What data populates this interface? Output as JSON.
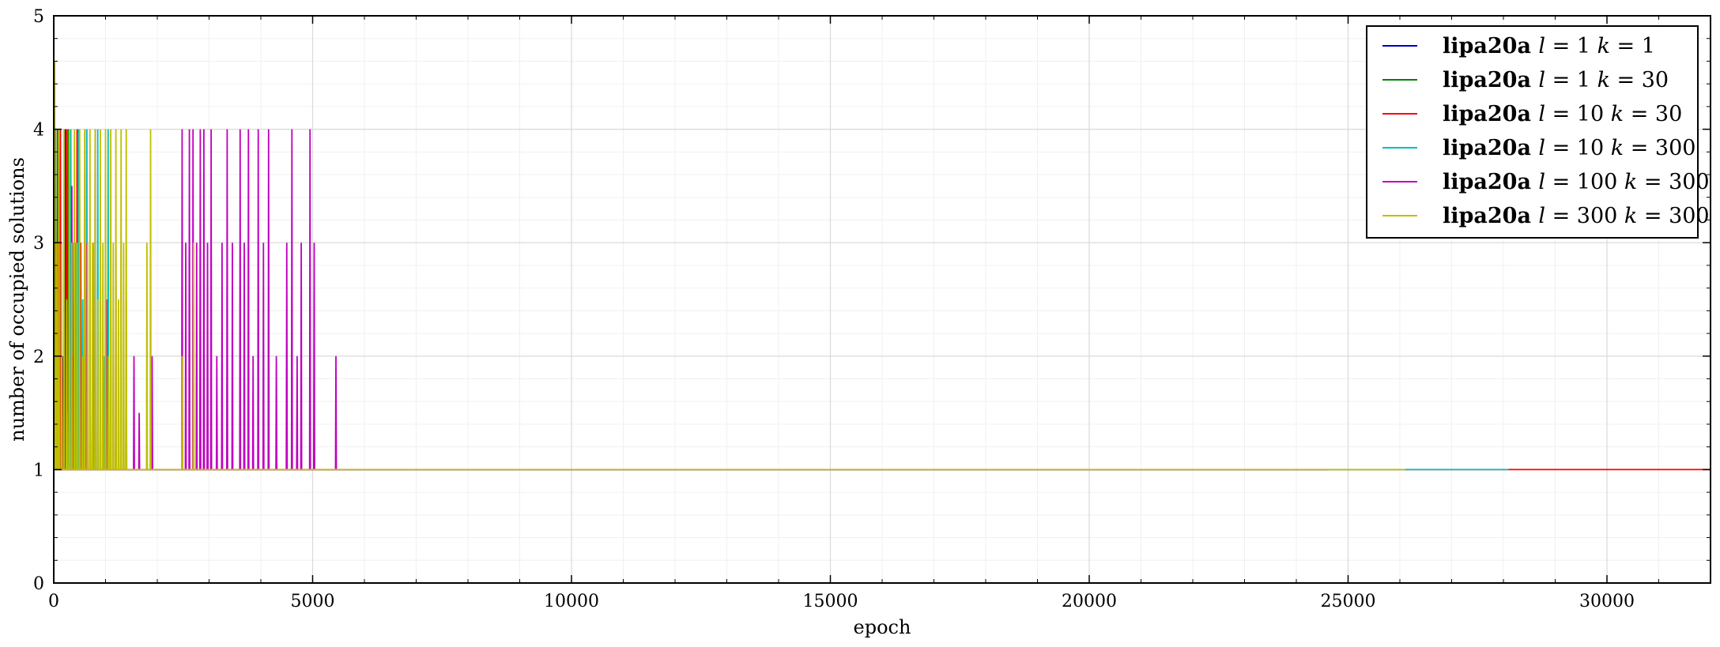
{
  "chart_data": {
    "type": "line",
    "xlabel": "epoch",
    "ylabel": "number of occupied solutions",
    "xlim": [
      0,
      32000
    ],
    "ylim": [
      0,
      5
    ],
    "x_ticks": [
      0,
      5000,
      10000,
      15000,
      20000,
      25000,
      30000
    ],
    "x_tick_labels": [
      "0",
      "5000",
      "10000",
      "15000",
      "20000",
      "25000",
      "30000"
    ],
    "y_ticks": [
      0,
      1,
      2,
      3,
      4,
      5
    ],
    "y_tick_labels": [
      "0",
      "1",
      "2",
      "3",
      "4",
      "5"
    ],
    "grid": true,
    "minor_grid": true,
    "legend_position": "top-right",
    "series": [
      {
        "name": "lipa20a l = 1 k = 1",
        "legend": {
          "text": "lipa20a",
          "l": "1",
          "k": "1"
        },
        "color": "#0000bf",
        "end_epoch": 24600,
        "steady_value": 1,
        "spikes": [
          [
            10,
            4
          ],
          [
            40,
            2.5
          ],
          [
            90,
            3
          ],
          [
            160,
            2
          ],
          [
            220,
            4
          ],
          [
            300,
            1.5
          ],
          [
            360,
            3
          ],
          [
            420,
            2
          ]
        ]
      },
      {
        "name": "lipa20a l = 1 k = 30",
        "legend": {
          "text": "lipa20a",
          "l": "1",
          "k": "30"
        },
        "color": "#008000",
        "end_epoch": 24600,
        "steady_value": 1,
        "spikes": [
          [
            20,
            3
          ],
          [
            70,
            4
          ],
          [
            140,
            2
          ],
          [
            200,
            3
          ],
          [
            280,
            4
          ],
          [
            340,
            1.5
          ],
          [
            400,
            2.5
          ]
        ]
      },
      {
        "name": "lipa20a l = 10 k = 30",
        "legend": {
          "text": "lipa20a",
          "l": "10",
          "k": "30"
        },
        "color": "#ff0000",
        "end_epoch": 32000,
        "steady_value": 1,
        "spikes": [
          [
            30,
            4
          ],
          [
            80,
            3
          ],
          [
            130,
            4
          ],
          [
            190,
            2
          ],
          [
            250,
            4
          ],
          [
            310,
            3.5
          ],
          [
            380,
            2
          ],
          [
            450,
            4
          ],
          [
            520,
            3
          ],
          [
            600,
            4
          ],
          [
            700,
            2
          ]
        ]
      },
      {
        "name": "lipa20a l = 10 k = 300",
        "legend": {
          "text": "lipa20a",
          "l": "10",
          "k": "300"
        },
        "color": "#00bfbf",
        "end_epoch": 28100,
        "steady_value": 1,
        "spikes": [
          [
            150,
            3
          ],
          [
            260,
            1.5
          ],
          [
            330,
            4
          ],
          [
            420,
            3
          ],
          [
            480,
            4
          ],
          [
            560,
            2.5
          ],
          [
            640,
            4
          ],
          [
            760,
            3
          ],
          [
            850,
            4
          ],
          [
            980,
            2
          ],
          [
            1050,
            4
          ]
        ]
      },
      {
        "name": "lipa20a l = 100 k = 300",
        "legend": {
          "text": "lipa20a",
          "l": "100",
          "k": "300"
        },
        "color": "#bf00bf",
        "end_epoch": 24600,
        "steady_value": 1,
        "spikes": [
          [
            150,
            2
          ],
          [
            350,
            3.5
          ],
          [
            520,
            2
          ],
          [
            640,
            3
          ],
          [
            800,
            4
          ],
          [
            1020,
            2.5
          ],
          [
            1100,
            2.5
          ],
          [
            1200,
            3
          ],
          [
            1400,
            2.5
          ],
          [
            1550,
            2
          ],
          [
            1650,
            1.5
          ],
          [
            1900,
            2
          ],
          [
            2480,
            4
          ],
          [
            2550,
            3
          ],
          [
            2620,
            4
          ],
          [
            2690,
            4
          ],
          [
            2760,
            3
          ],
          [
            2830,
            4
          ],
          [
            2900,
            4
          ],
          [
            2970,
            3
          ],
          [
            3040,
            4
          ],
          [
            3150,
            2
          ],
          [
            3250,
            3
          ],
          [
            3350,
            4
          ],
          [
            3450,
            3
          ],
          [
            3600,
            4
          ],
          [
            3680,
            3
          ],
          [
            3760,
            4
          ],
          [
            3850,
            2
          ],
          [
            3950,
            4
          ],
          [
            4050,
            3
          ],
          [
            4150,
            4
          ],
          [
            4300,
            2
          ],
          [
            4500,
            3
          ],
          [
            4600,
            4
          ],
          [
            4700,
            2
          ],
          [
            4780,
            3
          ],
          [
            4950,
            4
          ],
          [
            5030,
            3
          ],
          [
            5450,
            2
          ]
        ]
      },
      {
        "name": "lipa20a l = 300 k = 300",
        "legend": {
          "text": "lipa20a",
          "l": "300",
          "k": "300"
        },
        "color": "#bfbf00",
        "end_epoch": 26100,
        "steady_value": 1,
        "spikes": [
          [
            20,
            4.6
          ],
          [
            60,
            3
          ],
          [
            100,
            4
          ],
          [
            150,
            3
          ],
          [
            200,
            4
          ],
          [
            250,
            2.5
          ],
          [
            300,
            4
          ],
          [
            350,
            3
          ],
          [
            400,
            4
          ],
          [
            450,
            3
          ],
          [
            500,
            4
          ],
          [
            550,
            2
          ],
          [
            600,
            4
          ],
          [
            650,
            3
          ],
          [
            700,
            4
          ],
          [
            750,
            3
          ],
          [
            800,
            4
          ],
          [
            850,
            2.5
          ],
          [
            900,
            4
          ],
          [
            950,
            3
          ],
          [
            1000,
            4
          ],
          [
            1050,
            2
          ],
          [
            1100,
            4
          ],
          [
            1150,
            3
          ],
          [
            1200,
            4
          ],
          [
            1250,
            2.5
          ],
          [
            1300,
            4
          ],
          [
            1350,
            3
          ],
          [
            1400,
            4
          ],
          [
            1800,
            3
          ],
          [
            1870,
            4
          ],
          [
            2480,
            2
          ],
          [
            2700,
            3
          ]
        ]
      }
    ]
  }
}
